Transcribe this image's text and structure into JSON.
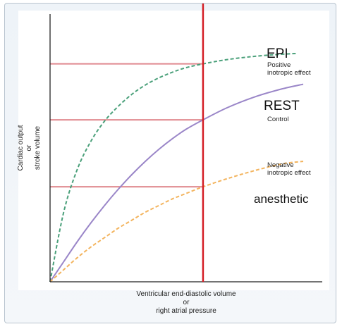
{
  "chart_data": {
    "type": "line",
    "xlabel": [
      "Ventricular end-diastolic volume",
      "or",
      "right atrial pressure"
    ],
    "ylabel": [
      "Cardiac output",
      "or",
      "stroke volume"
    ],
    "xlim": [
      0,
      10
    ],
    "ylim": [
      0,
      10
    ],
    "grid": false,
    "reference_x": 5.62,
    "colors": {
      "reference_line": "#d41f26",
      "guide_lines": "#e0898f",
      "axis": "#222222"
    },
    "series": [
      {
        "name": "EPI",
        "annotation": "Positive inotropic effect",
        "annotation_lines": [
          "Positive",
          "inotropic effect"
        ],
        "style": "dashed",
        "color": "#4aa07a",
        "label_size": "large",
        "x": [
          0,
          0.5,
          1,
          1.5,
          2,
          2.5,
          3,
          3.5,
          4,
          4.5,
          5,
          5.62,
          6.5,
          7.5,
          8.5,
          9.1
        ],
        "y": [
          0,
          2.6,
          4.2,
          5.25,
          6.0,
          6.55,
          7.0,
          7.35,
          7.62,
          7.83,
          8.0,
          8.14,
          8.3,
          8.42,
          8.5,
          8.53
        ]
      },
      {
        "name": "REST",
        "annotation": "Control",
        "annotation_lines": [
          "Control"
        ],
        "style": "solid",
        "color": "#9a86c8",
        "label_size": "large",
        "x": [
          0,
          0.5,
          1,
          1.5,
          2,
          2.5,
          3,
          3.5,
          4,
          4.5,
          5,
          5.62,
          6.5,
          7.5,
          8.5,
          9.3
        ],
        "y": [
          0,
          0.75,
          1.5,
          2.2,
          2.85,
          3.45,
          4.0,
          4.5,
          4.95,
          5.35,
          5.7,
          6.05,
          6.5,
          6.9,
          7.2,
          7.38
        ]
      },
      {
        "name": "anesthetic",
        "annotation": "Negative inotropic effect",
        "annotation_lines": [
          "Negative",
          "inotropic effect"
        ],
        "style": "dashed",
        "color": "#f3b45e",
        "label_size": "medium",
        "x": [
          0,
          0.5,
          1,
          1.5,
          2,
          2.5,
          3,
          3.5,
          4,
          4.5,
          5,
          5.62,
          6.5,
          7.5,
          8.5,
          9.3
        ],
        "y": [
          0,
          0.45,
          0.9,
          1.3,
          1.65,
          2.0,
          2.3,
          2.6,
          2.85,
          3.1,
          3.3,
          3.55,
          3.85,
          4.15,
          4.4,
          4.5
        ]
      }
    ]
  }
}
